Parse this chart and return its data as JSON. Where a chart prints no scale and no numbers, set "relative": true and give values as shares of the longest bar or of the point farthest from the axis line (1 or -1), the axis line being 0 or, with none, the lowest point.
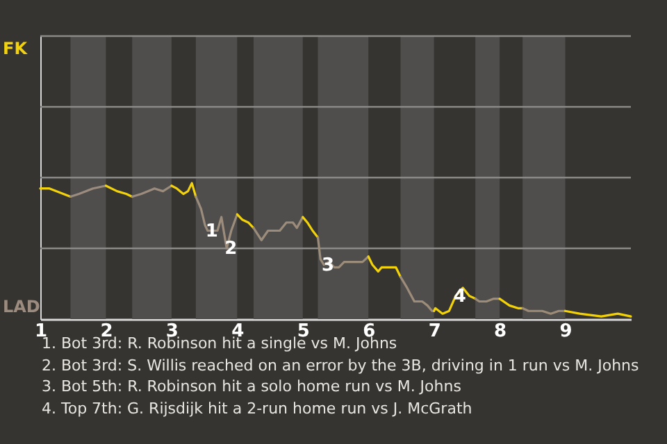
{
  "chart_data": {
    "type": "line",
    "relative": true,
    "series": [
      {
        "color": "#f2d20c",
        "x": [
          1,
          1.14,
          1.46
        ],
        "values": [
          0.96,
          0.96,
          0.9
        ]
      },
      {
        "color": "#9c8c7f",
        "x": [
          1.46,
          1.59,
          1.8,
          2
        ],
        "values": [
          0.9,
          0.92,
          0.96,
          0.98
        ]
      },
      {
        "color": "#f2d20d",
        "x": [
          2,
          2.17,
          2.31,
          2.4
        ],
        "values": [
          0.98,
          0.94,
          0.92,
          0.9
        ]
      },
      {
        "color": "#9c8c7d",
        "x": [
          2.4,
          2.54,
          2.74,
          2.87,
          3
        ],
        "values": [
          0.9,
          0.92,
          0.96,
          0.94,
          0.98
        ]
      },
      {
        "color": "#f2d20e",
        "x": [
          3,
          3.08,
          3.18,
          3.25,
          3.31,
          3.37
        ],
        "values": [
          0.98,
          0.96,
          0.92,
          0.94,
          1,
          0.9
        ]
      },
      {
        "color": "#9c8c7c",
        "x": [
          3.37,
          3.45,
          3.51,
          3.55,
          3.7,
          3.76,
          3.84,
          3.91,
          4
        ],
        "values": [
          0.9,
          0.81,
          0.69,
          0.65,
          0.65,
          0.75,
          0.52,
          0.65,
          0.77
        ]
      },
      {
        "color": "#f2d20b",
        "x": [
          4,
          4.08,
          4.17,
          4.25
        ],
        "values": [
          0.77,
          0.73,
          0.71,
          0.67
        ]
      },
      {
        "color": "#9c8c7b",
        "x": [
          4.25,
          4.37,
          4.47,
          4.65,
          4.75,
          4.85,
          4.91,
          5
        ],
        "values": [
          0.67,
          0.58,
          0.65,
          0.65,
          0.71,
          0.71,
          0.67,
          0.75
        ]
      },
      {
        "color": "#f2d20a",
        "x": [
          5,
          5.07,
          5.15,
          5.23
        ],
        "values": [
          0.75,
          0.71,
          0.65,
          0.6
        ]
      },
      {
        "color": "#9c8c7a",
        "x": [
          5.23,
          5.27,
          5.32,
          5.4,
          5.48,
          5.55,
          5.63,
          5.91,
          6
        ],
        "values": [
          0.6,
          0.44,
          0.4,
          0.42,
          0.38,
          0.38,
          0.42,
          0.42,
          0.46
        ]
      },
      {
        "color": "#f2d209",
        "x": [
          6,
          6.06,
          6.15,
          6.2,
          6.42,
          6.49
        ],
        "values": [
          0.46,
          0.4,
          0.35,
          0.38,
          0.38,
          0.31
        ]
      },
      {
        "color": "#9c8c79",
        "x": [
          6.49,
          6.59,
          6.7,
          6.82,
          6.9,
          6.97,
          7
        ],
        "values": [
          0.31,
          0.23,
          0.13,
          0.13,
          0.1,
          0.06,
          0.06
        ]
      },
      {
        "color": "#f2d208",
        "x": [
          7,
          7.02,
          7.13,
          7.23,
          7.33,
          7.44,
          7.54,
          7.63
        ],
        "values": [
          0.06,
          0.08,
          0.04,
          0.06,
          0.17,
          0.23,
          0.17,
          0.15
        ]
      },
      {
        "color": "#9c8c78",
        "x": [
          7.63,
          7.69,
          7.8,
          7.91,
          8
        ],
        "values": [
          0.15,
          0.13,
          0.13,
          0.15,
          0.15
        ]
      },
      {
        "color": "#f2d207",
        "x": [
          8,
          8.15,
          8.28,
          8.35
        ],
        "values": [
          0.15,
          0.1,
          0.08,
          0.08
        ]
      },
      {
        "color": "#9c8c77",
        "x": [
          8.35,
          8.44,
          8.65,
          8.78,
          8.9,
          9
        ],
        "values": [
          0.08,
          0.06,
          0.06,
          0.04,
          0.06,
          0.06
        ]
      },
      {
        "color": "#f2d206",
        "x": [
          9,
          9.22,
          9.55,
          9.8,
          10
        ],
        "values": [
          0.06,
          0.04,
          0.02,
          0.04,
          0.02
        ]
      }
    ],
    "xlim": [
      1,
      10
    ],
    "xticks": [
      1,
      2,
      3,
      4,
      5,
      6,
      7,
      8,
      9
    ],
    "ref_lines": [
      {
        "axis": "y",
        "value": 0.52,
        "color": "#8a8a88"
      },
      {
        "axis": "y",
        "value": 1.04,
        "color": "#8a8a88"
      },
      {
        "axis": "y",
        "value": 1.56,
        "color": "#8a8a88"
      },
      {
        "axis": "y",
        "value": 2.08,
        "color": "#8a8a88"
      }
    ],
    "bands": [
      {
        "axis": "x",
        "from": 1.46,
        "to": 2,
        "color": "#4f4e4c"
      },
      {
        "axis": "x",
        "from": 2.4,
        "to": 3,
        "color": "#4f4e4c"
      },
      {
        "axis": "x",
        "from": 3.37,
        "to": 4,
        "color": "#4f4e4c"
      },
      {
        "axis": "x",
        "from": 4.25,
        "to": 5,
        "color": "#4f4e4c"
      },
      {
        "axis": "x",
        "from": 5.23,
        "to": 6,
        "color": "#4f4e4c"
      },
      {
        "axis": "x",
        "from": 6.49,
        "to": 7,
        "color": "#4f4e4c"
      },
      {
        "axis": "x",
        "from": 7.63,
        "to": 8,
        "color": "#4f4e4c"
      },
      {
        "axis": "x",
        "from": 8.35,
        "to": 9,
        "color": "#4f4e4c"
      }
    ],
    "annotations": [
      "FK",
      "LAD",
      {
        "text": "1",
        "x": 3.55,
        "y": 0.65
      },
      {
        "text": "2",
        "x": 3.84,
        "y": 0.52
      },
      {
        "text": "3",
        "x": 5.32,
        "y": 0.4
      },
      {
        "text": "4",
        "x": 7.33,
        "y": 0.17
      },
      "1. Bot 3rd: R. Robinson hit a single vs M. Johns",
      "2. Bot 3rd: S. Willis reached on an error by the 3B, driving in 1 run vs M. Johns",
      "3. Bot 5th: R. Robinson hit a solo home run vs M. Johns",
      "4. Top 7th: G. Rijsdijk hit a 2-run home run vs J. McGrath"
    ]
  }
}
